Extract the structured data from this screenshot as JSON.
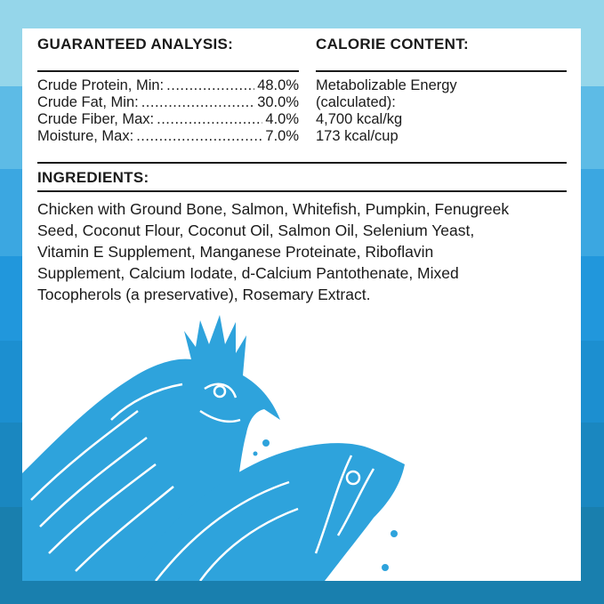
{
  "guaranteed_analysis": {
    "title": "GUARANTEED ANALYSIS:",
    "rows": [
      {
        "label": "Crude Protein, Min:",
        "value": "48.0%"
      },
      {
        "label": "Crude Fat, Min:",
        "value": "30.0%"
      },
      {
        "label": "Crude Fiber, Max:",
        "value": "4.0%"
      },
      {
        "label": "Moisture, Max:",
        "value": "7.0%"
      }
    ]
  },
  "calorie_content": {
    "title": "CALORIE CONTENT:",
    "lines": [
      "Metabolizable Energy",
      "(calculated):",
      "4,700 kcal/kg",
      "173 kcal/cup"
    ]
  },
  "ingredients": {
    "title": "INGREDIENTS:",
    "lines": [
      "Chicken with Ground Bone, Salmon, Whitefish, Pumpkin, Fenugreek",
      "Seed, Coconut Flour, Coconut Oil, Salmon Oil, Selenium Yeast,",
      "Vitamin E Supplement, Manganese Proteinate, Riboflavin",
      "Supplement, Calcium Iodate, d-Calcium Pantothenate, Mixed",
      "Tocopherols (a preservative), Rosemary Extract."
    ]
  },
  "colors": {
    "illustration": "#2ea3dc",
    "background_top": "#95d6ea",
    "background_bottom": "#197fae"
  },
  "illustration": [
    "chicken-icon",
    "salmon-icon"
  ]
}
